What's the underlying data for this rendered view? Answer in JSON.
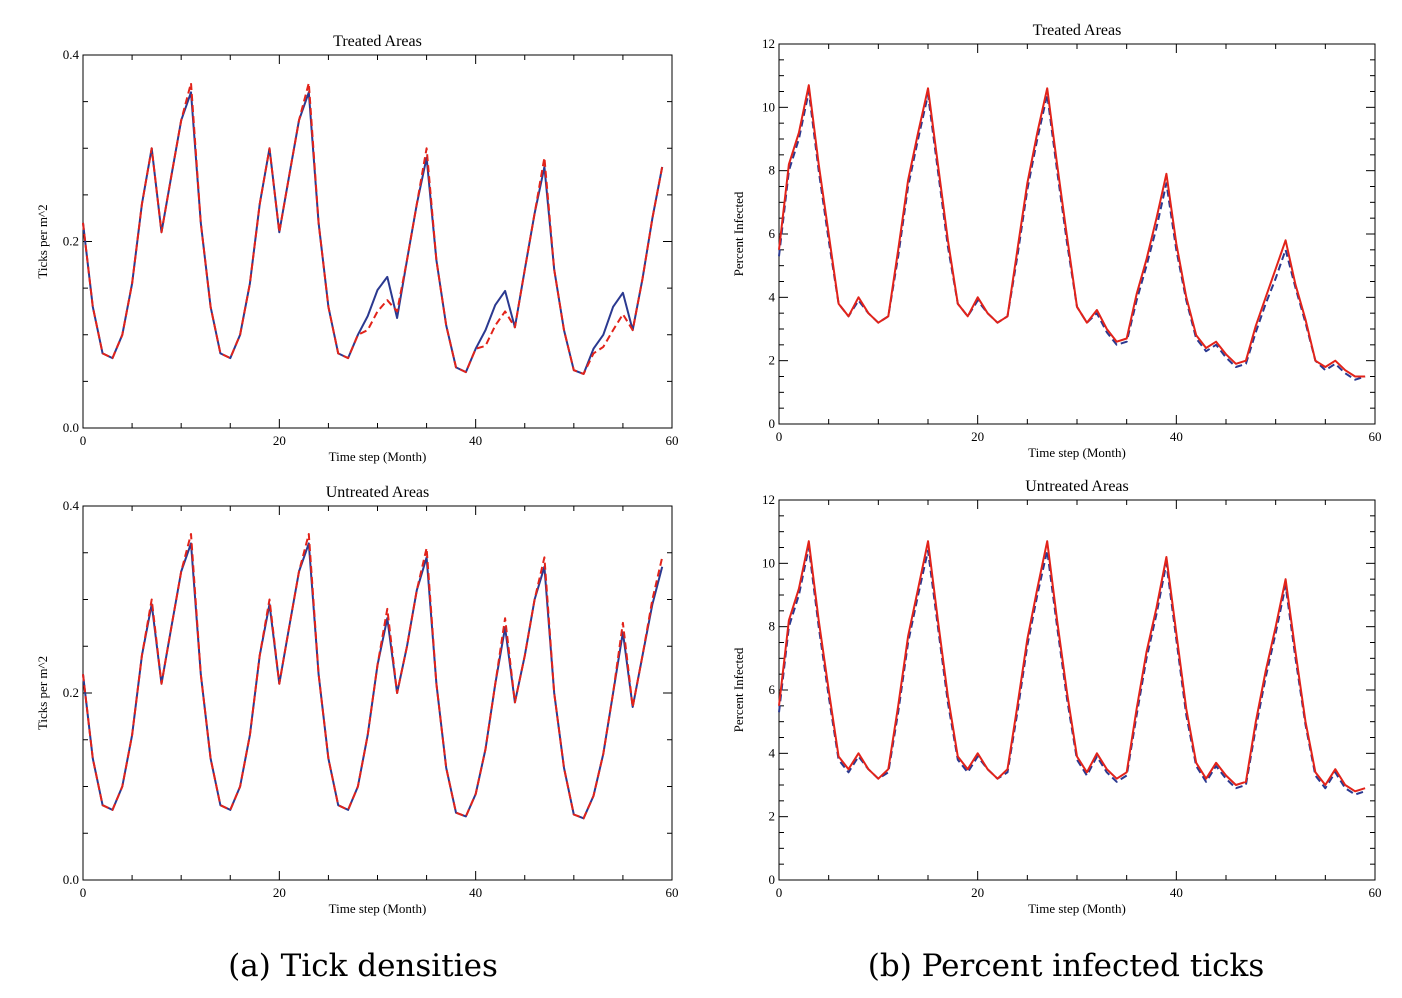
{
  "captions": {
    "a": "(a) Tick densities",
    "b": "(b) Percent infected ticks"
  },
  "chart_data": [
    {
      "id": "tl",
      "type": "line",
      "title": "Treated Areas",
      "xlabel": "Time step (Month)",
      "ylabel": "Ticks per m^2",
      "xlim": [
        0,
        60
      ],
      "ylim": [
        0.0,
        0.4
      ],
      "xticks": [
        0,
        20,
        40,
        60
      ],
      "yticks": [
        0.0,
        0.2,
        0.4
      ],
      "ytick_labels": [
        "0.0",
        "0.2",
        "0.4"
      ],
      "grid": false,
      "series": [
        {
          "color": "#2b3990",
          "style": "solid",
          "values": [
            0.22,
            0.13,
            0.08,
            0.075,
            0.1,
            0.155,
            0.24,
            0.3,
            0.21,
            0.27,
            0.33,
            0.36,
            0.22,
            0.13,
            0.08,
            0.075,
            0.1,
            0.155,
            0.24,
            0.3,
            0.21,
            0.27,
            0.33,
            0.36,
            0.22,
            0.13,
            0.08,
            0.075,
            0.1,
            0.12,
            0.148,
            0.162,
            0.118,
            0.18,
            0.24,
            0.29,
            0.18,
            0.11,
            0.065,
            0.06,
            0.085,
            0.105,
            0.132,
            0.147,
            0.108,
            0.17,
            0.23,
            0.28,
            0.17,
            0.105,
            0.062,
            0.058,
            0.085,
            0.1,
            0.13,
            0.145,
            0.105,
            0.16,
            0.225,
            0.28
          ]
        },
        {
          "color": "#e2231a",
          "style": "dashed",
          "values": [
            0.22,
            0.13,
            0.08,
            0.075,
            0.1,
            0.155,
            0.24,
            0.3,
            0.21,
            0.27,
            0.33,
            0.37,
            0.22,
            0.13,
            0.08,
            0.075,
            0.1,
            0.155,
            0.24,
            0.3,
            0.21,
            0.27,
            0.33,
            0.37,
            0.22,
            0.13,
            0.08,
            0.075,
            0.1,
            0.105,
            0.125,
            0.137,
            0.125,
            0.18,
            0.24,
            0.3,
            0.18,
            0.11,
            0.065,
            0.06,
            0.085,
            0.088,
            0.11,
            0.125,
            0.108,
            0.17,
            0.23,
            0.29,
            0.17,
            0.105,
            0.062,
            0.058,
            0.08,
            0.087,
            0.105,
            0.122,
            0.105,
            0.16,
            0.225,
            0.28
          ]
        }
      ]
    },
    {
      "id": "tr",
      "type": "line",
      "title": "Treated Areas",
      "xlabel": "Time step (Month)",
      "ylabel": "Percent Infected",
      "xlim": [
        0,
        60
      ],
      "ylim": [
        0,
        12
      ],
      "xticks": [
        0,
        20,
        40,
        60
      ],
      "yticks": [
        0,
        2,
        4,
        6,
        8,
        10,
        12
      ],
      "ytick_labels": [
        "0",
        "2",
        "4",
        "6",
        "8",
        "10",
        "12"
      ],
      "grid": false,
      "series": [
        {
          "color": "#2b3990",
          "style": "dashed",
          "values": [
            5.3,
            8.0,
            9.0,
            10.5,
            8.0,
            5.8,
            3.8,
            3.4,
            3.9,
            3.5,
            3.2,
            3.4,
            5.3,
            7.5,
            9.0,
            10.4,
            8.0,
            5.6,
            3.8,
            3.4,
            3.9,
            3.5,
            3.2,
            3.4,
            5.3,
            7.4,
            9.0,
            10.4,
            8.0,
            5.7,
            3.7,
            3.2,
            3.5,
            2.9,
            2.5,
            2.6,
            3.9,
            5.0,
            6.2,
            7.6,
            5.5,
            3.9,
            2.7,
            2.3,
            2.5,
            2.1,
            1.8,
            1.9,
            2.9,
            3.8,
            4.6,
            5.5,
            4.3,
            3.2,
            2.0,
            1.7,
            1.9,
            1.6,
            1.4,
            1.5
          ]
        },
        {
          "color": "#e2231a",
          "style": "solid",
          "values": [
            5.5,
            8.2,
            9.2,
            10.7,
            8.2,
            6.0,
            3.8,
            3.4,
            4.0,
            3.5,
            3.2,
            3.4,
            5.5,
            7.7,
            9.2,
            10.6,
            8.2,
            5.8,
            3.8,
            3.4,
            4.0,
            3.5,
            3.2,
            3.4,
            5.5,
            7.6,
            9.2,
            10.6,
            8.2,
            5.9,
            3.7,
            3.2,
            3.6,
            3.0,
            2.6,
            2.7,
            4.1,
            5.2,
            6.5,
            7.9,
            5.7,
            4.0,
            2.8,
            2.4,
            2.6,
            2.2,
            1.9,
            2.0,
            3.1,
            4.0,
            4.9,
            5.8,
            4.4,
            3.3,
            2.0,
            1.8,
            2.0,
            1.7,
            1.5,
            1.5
          ]
        }
      ]
    },
    {
      "id": "bl",
      "type": "line",
      "title": "Untreated Areas",
      "xlabel": "Time step (Month)",
      "ylabel": "Ticks per m^2",
      "xlim": [
        0,
        60
      ],
      "ylim": [
        0.0,
        0.4
      ],
      "xticks": [
        0,
        20,
        40,
        60
      ],
      "yticks": [
        0.0,
        0.2,
        0.4
      ],
      "ytick_labels": [
        "0.0",
        "0.2",
        "0.4"
      ],
      "grid": false,
      "series": [
        {
          "color": "#2b3990",
          "style": "solid",
          "values": [
            0.22,
            0.13,
            0.08,
            0.075,
            0.1,
            0.155,
            0.24,
            0.295,
            0.21,
            0.27,
            0.33,
            0.36,
            0.22,
            0.13,
            0.08,
            0.075,
            0.1,
            0.155,
            0.24,
            0.295,
            0.21,
            0.27,
            0.33,
            0.36,
            0.22,
            0.13,
            0.08,
            0.075,
            0.1,
            0.155,
            0.23,
            0.28,
            0.2,
            0.25,
            0.31,
            0.345,
            0.21,
            0.12,
            0.072,
            0.068,
            0.092,
            0.14,
            0.21,
            0.27,
            0.19,
            0.24,
            0.3,
            0.335,
            0.2,
            0.12,
            0.07,
            0.066,
            0.09,
            0.135,
            0.2,
            0.265,
            0.185,
            0.24,
            0.295,
            0.335
          ]
        },
        {
          "color": "#e2231a",
          "style": "dashed",
          "values": [
            0.22,
            0.13,
            0.08,
            0.075,
            0.1,
            0.155,
            0.24,
            0.3,
            0.21,
            0.27,
            0.33,
            0.37,
            0.22,
            0.13,
            0.08,
            0.075,
            0.1,
            0.155,
            0.24,
            0.3,
            0.21,
            0.27,
            0.33,
            0.37,
            0.22,
            0.13,
            0.08,
            0.075,
            0.1,
            0.155,
            0.23,
            0.29,
            0.2,
            0.25,
            0.31,
            0.355,
            0.21,
            0.12,
            0.072,
            0.068,
            0.092,
            0.14,
            0.21,
            0.28,
            0.19,
            0.24,
            0.3,
            0.345,
            0.2,
            0.12,
            0.07,
            0.066,
            0.09,
            0.135,
            0.2,
            0.275,
            0.185,
            0.24,
            0.3,
            0.345
          ]
        }
      ]
    },
    {
      "id": "br",
      "type": "line",
      "title": "Untreated Areas",
      "xlabel": "Time step (Month)",
      "ylabel": "Percent Infected",
      "xlim": [
        0,
        60
      ],
      "ylim": [
        0,
        12
      ],
      "xticks": [
        0,
        20,
        40,
        60
      ],
      "yticks": [
        0,
        2,
        4,
        6,
        8,
        10,
        12
      ],
      "ytick_labels": [
        "0",
        "2",
        "4",
        "6",
        "8",
        "10",
        "12"
      ],
      "grid": false,
      "series": [
        {
          "color": "#2b3990",
          "style": "dashed",
          "values": [
            5.3,
            8.0,
            9.0,
            10.5,
            8.0,
            5.8,
            3.8,
            3.4,
            3.9,
            3.5,
            3.2,
            3.4,
            5.3,
            7.5,
            9.0,
            10.4,
            8.0,
            5.6,
            3.8,
            3.4,
            3.9,
            3.5,
            3.2,
            3.4,
            5.3,
            7.4,
            9.0,
            10.4,
            8.0,
            5.7,
            3.8,
            3.3,
            3.9,
            3.4,
            3.1,
            3.3,
            5.2,
            7.0,
            8.4,
            10.0,
            7.6,
            5.2,
            3.6,
            3.1,
            3.6,
            3.2,
            2.9,
            3.0,
            4.8,
            6.4,
            7.8,
            9.3,
            7.0,
            4.9,
            3.3,
            2.9,
            3.4,
            2.9,
            2.7,
            2.8
          ]
        },
        {
          "color": "#e2231a",
          "style": "solid",
          "values": [
            5.5,
            8.2,
            9.2,
            10.7,
            8.2,
            6.0,
            3.9,
            3.5,
            4.0,
            3.5,
            3.2,
            3.5,
            5.5,
            7.7,
            9.2,
            10.7,
            8.2,
            5.8,
            3.9,
            3.5,
            4.0,
            3.5,
            3.2,
            3.5,
            5.5,
            7.6,
            9.2,
            10.7,
            8.2,
            5.9,
            3.9,
            3.4,
            4.0,
            3.5,
            3.2,
            3.4,
            5.4,
            7.2,
            8.6,
            10.2,
            7.8,
            5.4,
            3.7,
            3.2,
            3.7,
            3.3,
            3.0,
            3.1,
            5.0,
            6.6,
            8.0,
            9.5,
            7.2,
            5.0,
            3.4,
            3.0,
            3.5,
            3.0,
            2.8,
            2.9
          ]
        }
      ]
    }
  ]
}
